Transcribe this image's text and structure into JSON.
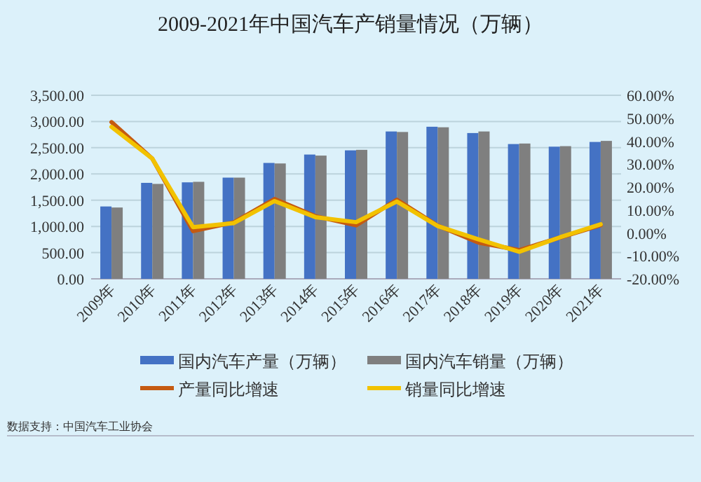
{
  "chart_data": {
    "type": "bar",
    "title": "2009-2021年中国汽车产销量情况（万辆）",
    "categories": [
      "2009年",
      "2010年",
      "2011年",
      "2012年",
      "2013年",
      "2014年",
      "2015年",
      "2016年",
      "2017年",
      "2018年",
      "2019年",
      "2020年",
      "2021年"
    ],
    "series": [
      {
        "name": "国内汽车产量（万辆）",
        "color": "#4472c4",
        "values": [
          1380,
          1830,
          1840,
          1930,
          2210,
          2370,
          2450,
          2810,
          2900,
          2780,
          2570,
          2520,
          2610
        ]
      },
      {
        "name": "国内汽车销量（万辆）",
        "color": "#7f7f7f",
        "values": [
          1360,
          1810,
          1850,
          1930,
          2200,
          2350,
          2460,
          2800,
          2890,
          2810,
          2580,
          2530,
          2630
        ]
      },
      {
        "name": "产量同比增速",
        "color": "#c55a11",
        "type": "line",
        "axis": "y2",
        "values": [
          48.3,
          32.4,
          0.8,
          4.6,
          14.8,
          7.3,
          3.3,
          14.5,
          3.2,
          -4.2,
          -7.5,
          -2.0,
          3.4
        ]
      },
      {
        "name": "销量同比增速",
        "color": "#f2c200",
        "type": "line",
        "axis": "y2",
        "values": [
          46.2,
          32.4,
          2.5,
          4.3,
          13.9,
          6.9,
          4.7,
          13.7,
          3.0,
          -2.8,
          -8.2,
          -1.9,
          3.8
        ]
      }
    ],
    "ylim": [
      0,
      3500
    ],
    "yticks": [
      {
        "value": 0,
        "label": "0.00"
      },
      {
        "value": 500,
        "label": "500.00"
      },
      {
        "value": 1000,
        "label": "1,000.00"
      },
      {
        "value": 1500,
        "label": "1,500.00"
      },
      {
        "value": 2000,
        "label": "2,000.00"
      },
      {
        "value": 2500,
        "label": "2,500.00"
      },
      {
        "value": 3000,
        "label": "3,000.00"
      },
      {
        "value": 3500,
        "label": "3,500.00"
      }
    ],
    "y2lim": [
      -20,
      60
    ],
    "y2ticks": [
      {
        "value": -20,
        "label": "-20.00%"
      },
      {
        "value": -10,
        "label": "-10.00%"
      },
      {
        "value": 0,
        "label": "0.00%"
      },
      {
        "value": 10,
        "label": "10.00%"
      },
      {
        "value": 20,
        "label": "20.00%"
      },
      {
        "value": 30,
        "label": "30.00%"
      },
      {
        "value": 40,
        "label": "40.00%"
      },
      {
        "value": 50,
        "label": "50.00%"
      },
      {
        "value": 60,
        "label": "60.00%"
      }
    ],
    "grid": "y",
    "legend": "bottom",
    "annotations": [
      "数据支持：中国汽车工业协会"
    ]
  }
}
